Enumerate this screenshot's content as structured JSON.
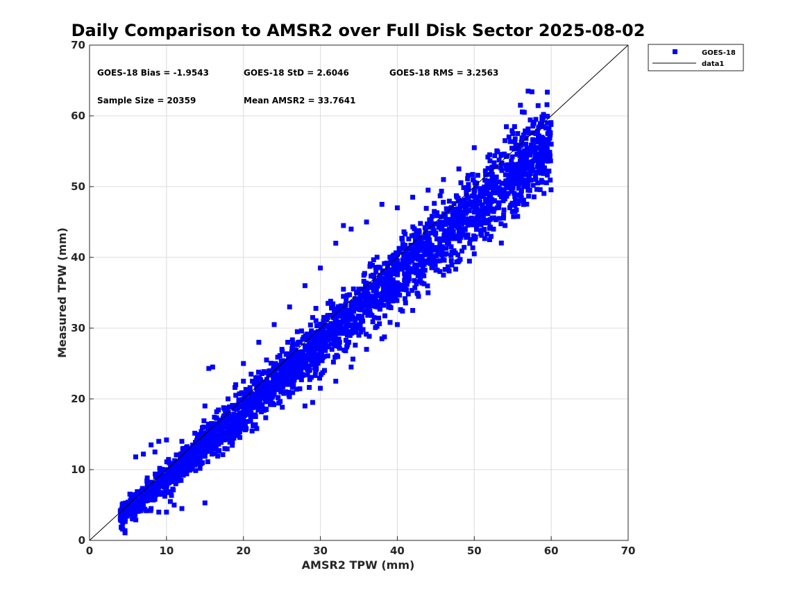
{
  "chart_data": {
    "type": "scatter",
    "title": "Daily Comparison to AMSR2 over Full Disk Sector 2025-08-02",
    "xlabel": "AMSR2 TPW (mm)",
    "ylabel": "Measured TPW (mm)",
    "xlim": [
      0,
      70
    ],
    "ylim": [
      0,
      70
    ],
    "xticks": [
      "0",
      "10",
      "20",
      "30",
      "40",
      "50",
      "60",
      "70"
    ],
    "yticks": [
      "0",
      "10",
      "20",
      "30",
      "40",
      "50",
      "60",
      "70"
    ],
    "grid": true,
    "legend": {
      "position": "outside-top-right",
      "entries": [
        {
          "label": "GOES-18",
          "marker": "square",
          "color": "#0000ff"
        },
        {
          "label": "data1",
          "marker": "line",
          "color": "#000000"
        }
      ]
    },
    "annotations": [
      "GOES-18 Bias = -1.9543",
      "GOES-18 StD = 2.6046",
      "GOES-18 RMS = 3.2563",
      "Sample Size = 20359",
      "Mean AMSR2 = 33.7641"
    ],
    "series": [
      {
        "name": "GOES-18",
        "color": "#0000ff",
        "marker": "square",
        "sample_size": 20359,
        "x_range": [
          4,
          60
        ],
        "bias": -1.9543,
        "std": 2.6046,
        "points": [
          [
            4,
            4.2
          ],
          [
            4.5,
            4.8
          ],
          [
            5,
            5.4
          ],
          [
            5.5,
            5.0
          ],
          [
            6,
            6.2
          ],
          [
            6.5,
            5.6
          ],
          [
            7,
            6.8
          ],
          [
            7.5,
            6.4
          ],
          [
            8,
            7.6
          ],
          [
            8.5,
            7.0
          ],
          [
            9,
            8.4
          ],
          [
            9.5,
            8.0
          ],
          [
            10,
            9.2
          ],
          [
            10.5,
            8.6
          ],
          [
            11,
            10.0
          ],
          [
            11.5,
            9.6
          ],
          [
            12,
            10.8
          ],
          [
            12.5,
            10.2
          ],
          [
            13,
            11.6
          ],
          [
            13.5,
            11.0
          ],
          [
            14,
            12.4
          ],
          [
            14.5,
            12.0
          ],
          [
            15,
            13.2
          ],
          [
            15.5,
            12.6
          ],
          [
            16,
            14.0
          ],
          [
            16.5,
            13.6
          ],
          [
            17,
            14.8
          ],
          [
            17.5,
            14.2
          ],
          [
            18,
            15.6
          ],
          [
            18.5,
            15.0
          ],
          [
            19,
            16.4
          ],
          [
            19.5,
            16.0
          ],
          [
            20,
            17.2
          ],
          [
            20.5,
            16.8
          ],
          [
            21,
            18.0
          ],
          [
            21.5,
            17.6
          ],
          [
            22,
            18.8
          ],
          [
            22.5,
            18.4
          ],
          [
            23,
            19.6
          ],
          [
            23.5,
            19.2
          ],
          [
            24,
            20.6
          ],
          [
            24.5,
            20.2
          ],
          [
            25,
            21.6
          ],
          [
            25.5,
            21.0
          ],
          [
            26,
            22.4
          ],
          [
            26.5,
            22.0
          ],
          [
            27,
            23.4
          ],
          [
            27.5,
            23.0
          ],
          [
            28,
            24.4
          ],
          [
            28.5,
            24.0
          ],
          [
            29,
            25.4
          ],
          [
            29.5,
            25.0
          ],
          [
            30,
            26.4
          ],
          [
            30.5,
            26.0
          ],
          [
            31,
            27.4
          ],
          [
            31.5,
            27.0
          ],
          [
            32,
            28.4
          ],
          [
            32.5,
            28.0
          ],
          [
            33,
            29.4
          ],
          [
            33.5,
            29.0
          ],
          [
            34,
            30.4
          ],
          [
            34.5,
            30.0
          ],
          [
            35,
            31.4
          ],
          [
            35.5,
            31.0
          ],
          [
            36,
            32.4
          ],
          [
            36.5,
            32.0
          ],
          [
            37,
            33.4
          ],
          [
            37.5,
            33.0
          ],
          [
            38,
            34.4
          ],
          [
            38.5,
            34.0
          ],
          [
            39,
            35.4
          ],
          [
            39.5,
            35.0
          ],
          [
            40,
            36.4
          ],
          [
            40.5,
            36.0
          ],
          [
            41,
            37.4
          ],
          [
            41.5,
            37.0
          ],
          [
            42,
            38.4
          ],
          [
            42.5,
            38.0
          ],
          [
            43,
            39.4
          ],
          [
            43.5,
            39.0
          ],
          [
            44,
            40.4
          ],
          [
            44.5,
            40.0
          ],
          [
            45,
            41.4
          ],
          [
            45.5,
            41.0
          ],
          [
            46,
            42.4
          ],
          [
            46.5,
            42.0
          ],
          [
            47,
            43.4
          ],
          [
            47.5,
            43.0
          ],
          [
            48,
            44.4
          ],
          [
            48.5,
            44.0
          ],
          [
            49,
            45.4
          ],
          [
            49.5,
            45.0
          ],
          [
            50,
            46.4
          ],
          [
            50.5,
            46.0
          ],
          [
            51,
            47.4
          ],
          [
            51.5,
            47.0
          ],
          [
            52,
            48.4
          ],
          [
            52.5,
            48.0
          ],
          [
            53,
            49.4
          ],
          [
            53.5,
            49.0
          ],
          [
            54,
            50.4
          ],
          [
            54.5,
            50.0
          ],
          [
            55,
            51.4
          ],
          [
            55.5,
            51.0
          ],
          [
            56,
            52.4
          ],
          [
            56.5,
            52.0
          ],
          [
            57,
            53.4
          ],
          [
            57.5,
            53.0
          ],
          [
            58,
            54.4
          ],
          [
            58.5,
            54.0
          ],
          [
            59,
            55.4
          ],
          [
            59.5,
            55.0
          ],
          [
            60,
            56.0
          ],
          [
            8,
            13.5
          ],
          [
            9,
            14.0
          ],
          [
            8.5,
            12.5
          ],
          [
            6,
            11.8
          ],
          [
            7,
            12.2
          ],
          [
            10,
            14.2
          ],
          [
            12,
            14.0
          ],
          [
            16,
            24.5
          ],
          [
            15.5,
            24.3
          ],
          [
            15,
            19.0
          ],
          [
            9,
            4.0
          ],
          [
            10,
            4.0
          ],
          [
            11,
            5.0
          ],
          [
            12,
            4.5
          ],
          [
            15,
            5.3
          ],
          [
            10.5,
            5.5
          ],
          [
            8,
            4.5
          ],
          [
            7,
            4.8
          ],
          [
            6,
            4.7
          ],
          [
            5,
            4.6
          ],
          [
            20,
            25.0
          ],
          [
            22,
            28.0
          ],
          [
            24,
            30.5
          ],
          [
            26,
            33.0
          ],
          [
            28,
            36.0
          ],
          [
            30,
            38.5
          ],
          [
            32,
            42.0
          ],
          [
            33,
            44.5
          ],
          [
            34,
            44.0
          ],
          [
            36,
            45.0
          ],
          [
            38,
            47.5
          ],
          [
            40,
            47.0
          ],
          [
            42,
            48.5
          ],
          [
            44,
            49.5
          ],
          [
            46,
            51.0
          ],
          [
            48,
            52.5
          ],
          [
            50,
            55.5
          ],
          [
            52,
            54.5
          ],
          [
            54,
            56.5
          ],
          [
            55,
            57.5
          ],
          [
            56,
            61.5
          ],
          [
            57,
            63.5
          ],
          [
            57.5,
            63.4
          ],
          [
            58,
            59.5
          ],
          [
            58.5,
            58.5
          ],
          [
            59,
            60.2
          ],
          [
            59.5,
            59.0
          ],
          [
            59,
            58.5
          ],
          [
            58,
            57.5
          ],
          [
            56.5,
            60.5
          ],
          [
            28,
            19.0
          ],
          [
            29,
            19.5
          ],
          [
            30,
            21.5
          ],
          [
            32,
            22.5
          ],
          [
            34,
            24.5
          ],
          [
            36,
            27.0
          ],
          [
            38,
            28.5
          ],
          [
            40,
            30.5
          ],
          [
            42,
            32.5
          ],
          [
            44,
            35.0
          ],
          [
            46,
            37.5
          ],
          [
            48,
            39.5
          ],
          [
            50,
            40.5
          ],
          [
            52,
            42.5
          ],
          [
            54,
            44.5
          ],
          [
            55,
            46.5
          ],
          [
            56,
            48.0
          ],
          [
            57,
            49.5
          ],
          [
            58,
            51.0
          ],
          [
            59,
            52.0
          ],
          [
            35,
            29.0
          ],
          [
            37,
            31.5
          ],
          [
            39,
            33.0
          ],
          [
            41,
            35.5
          ],
          [
            43,
            37.0
          ],
          [
            45,
            39.5
          ],
          [
            47,
            41.5
          ],
          [
            49,
            43.0
          ],
          [
            51,
            45.0
          ],
          [
            53,
            47.0
          ],
          [
            22,
            20.5
          ],
          [
            24,
            22.5
          ],
          [
            26,
            24.0
          ],
          [
            28,
            27.5
          ],
          [
            30,
            29.0
          ],
          [
            32,
            30.5
          ],
          [
            34,
            33.0
          ],
          [
            36,
            35.5
          ],
          [
            38,
            37.0
          ],
          [
            40,
            39.5
          ],
          [
            18,
            20.0
          ],
          [
            19,
            22.0
          ],
          [
            20,
            22.5
          ],
          [
            21,
            23.5
          ],
          [
            23,
            25.5
          ],
          [
            25,
            27.0
          ],
          [
            27,
            29.5
          ],
          [
            29,
            31.5
          ],
          [
            31,
            33.5
          ],
          [
            33,
            35.5
          ]
        ]
      },
      {
        "name": "data1",
        "color": "#000000",
        "marker": "line",
        "points": [
          [
            0,
            0
          ],
          [
            70,
            70
          ]
        ]
      }
    ]
  }
}
